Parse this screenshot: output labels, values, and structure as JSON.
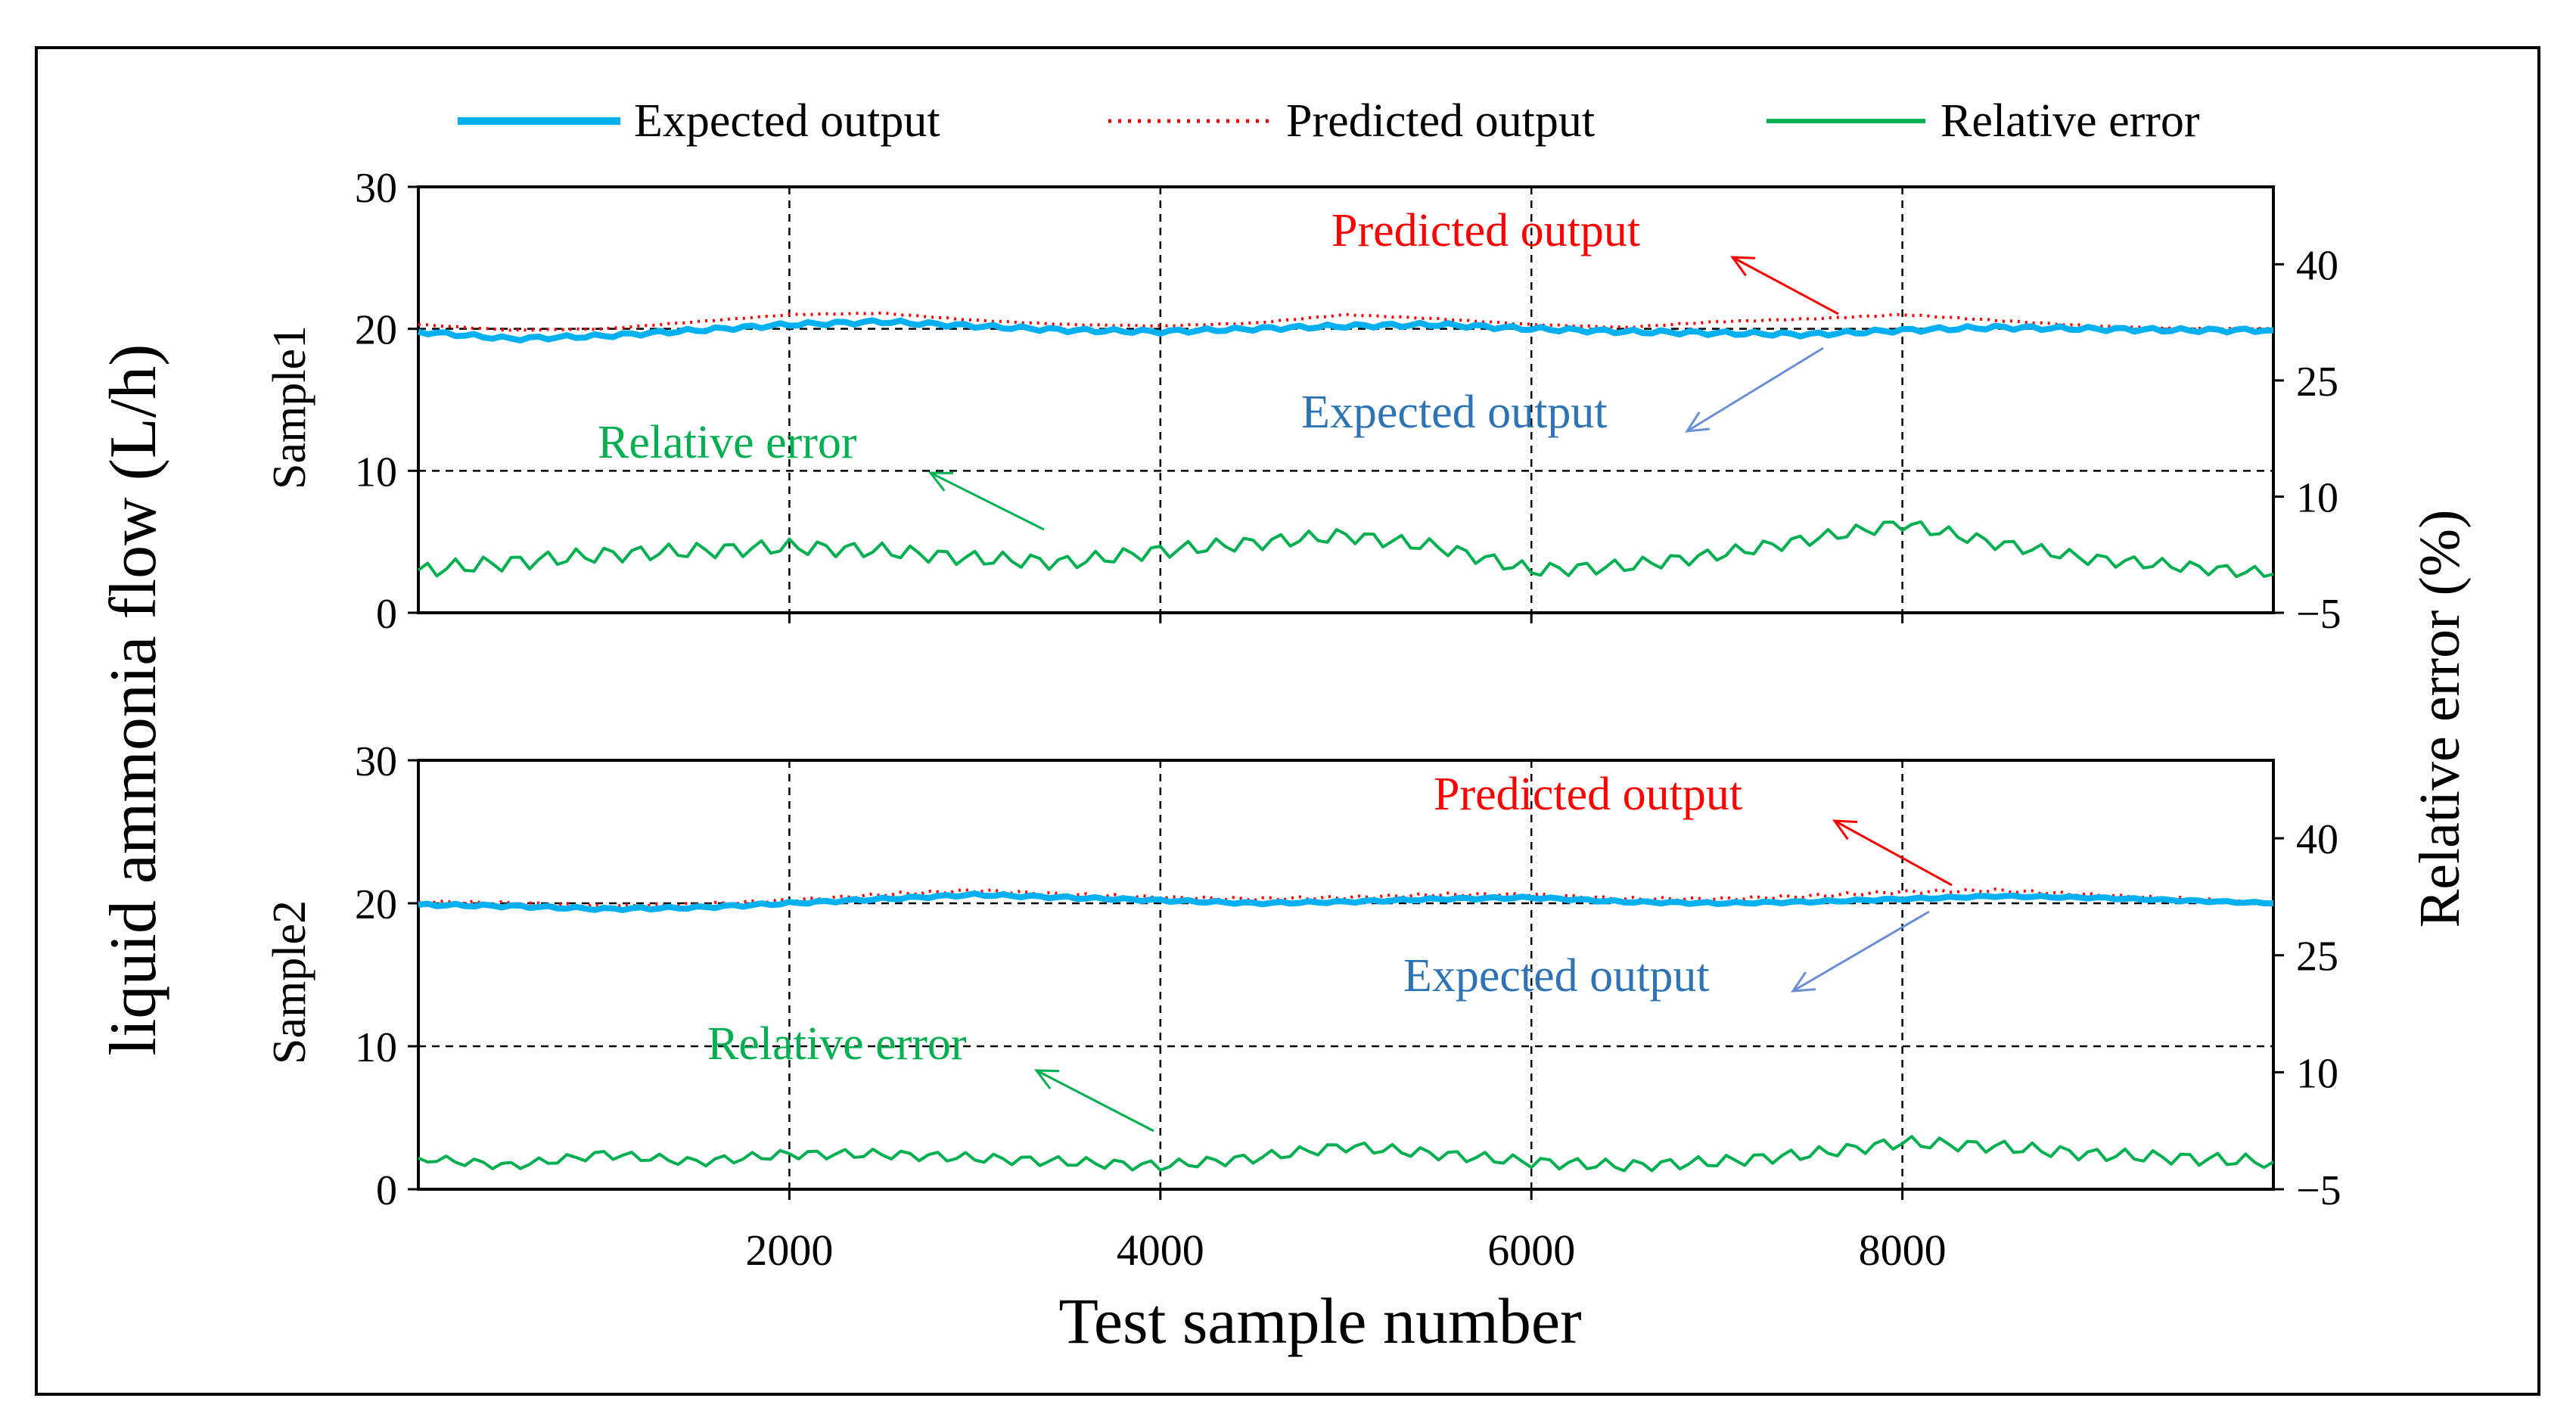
{
  "legend": {
    "items": [
      {
        "label": "Expected output",
        "color": "#00b0f0",
        "style": "solid"
      },
      {
        "label": "Predicted output",
        "color": "#ff0000",
        "style": "dotted"
      },
      {
        "label": "Relative error",
        "color": "#00b050",
        "style": "solid"
      }
    ]
  },
  "axes": {
    "ylabel_left": "liquid ammonia flow (L/h)",
    "ylabel_right": "Relative error (%)",
    "xlabel": "Test sample number",
    "xlim": [
      0,
      10000
    ],
    "xticks": [
      2000,
      4000,
      6000,
      8000
    ],
    "xtick_labels": [
      "2000",
      "4000",
      "6000",
      "8000"
    ],
    "ylim_left": [
      0,
      30
    ],
    "yticks_left": [
      0,
      10,
      20,
      30
    ],
    "yticks_left_labels": [
      "0",
      "10",
      "20",
      "30"
    ],
    "ylim_right": [
      -5,
      50
    ],
    "yticks_right": [
      -5,
      10,
      25,
      40
    ],
    "yticks_right_labels": [
      "−5",
      "10",
      "25",
      "40"
    ]
  },
  "colors": {
    "expected": "#00b0f0",
    "predicted": "#ff0000",
    "error": "#00b050",
    "ann_expected": "#2e74b5",
    "ann_predicted": "#ff0000",
    "ann_error": "#00b050"
  },
  "panels": [
    {
      "name": "Sample1",
      "annotations": {
        "predicted": "Predicted output",
        "expected": "Expected output",
        "error": "Relative error"
      }
    },
    {
      "name": "Sample2",
      "annotations": {
        "predicted": "Predicted output",
        "expected": "Expected output",
        "error": "Relative error"
      }
    }
  ],
  "chart_data": [
    {
      "type": "line",
      "title": "Sample1",
      "xlabel": "Test sample number",
      "ylabel": "liquid ammonia flow (L/h)",
      "y2label": "Relative error (%)",
      "xlim": [
        0,
        10000
      ],
      "ylim": [
        0,
        30
      ],
      "y2lim": [
        -5,
        50
      ],
      "x": [
        0,
        500,
        1000,
        1500,
        2000,
        2500,
        3000,
        3500,
        4000,
        4500,
        5000,
        5500,
        6000,
        6500,
        7000,
        7500,
        8000,
        8500,
        9000,
        9500,
        10000
      ],
      "series": [
        {
          "name": "Expected output",
          "axis": "left",
          "values": [
            19.8,
            19.3,
            19.5,
            19.9,
            20.3,
            20.5,
            20.2,
            19.9,
            19.8,
            20.0,
            20.2,
            20.3,
            20.0,
            19.8,
            19.7,
            19.6,
            19.9,
            20.1,
            20.0,
            19.9,
            19.9
          ]
        },
        {
          "name": "Predicted output",
          "axis": "left",
          "values": [
            20.3,
            19.9,
            20.0,
            20.5,
            21.0,
            21.1,
            20.6,
            20.3,
            20.2,
            20.4,
            21.0,
            20.7,
            20.3,
            20.1,
            20.5,
            20.7,
            21.0,
            20.6,
            20.2,
            20.0,
            20.0
          ]
        },
        {
          "name": "Relative error",
          "axis": "right",
          "values": [
            0.5,
            1.5,
            2.5,
            3.0,
            3.5,
            3.0,
            2.0,
            1.5,
            3.0,
            4.0,
            5.0,
            3.5,
            0.5,
            1.0,
            2.5,
            4.5,
            6.5,
            4.0,
            2.0,
            1.0,
            0.0
          ]
        }
      ]
    },
    {
      "type": "line",
      "title": "Sample2",
      "xlabel": "Test sample number",
      "ylabel": "liquid ammonia flow (L/h)",
      "y2label": "Relative error (%)",
      "xlim": [
        0,
        10000
      ],
      "ylim": [
        0,
        30
      ],
      "y2lim": [
        -5,
        50
      ],
      "x": [
        0,
        500,
        1000,
        1500,
        2000,
        2500,
        3000,
        3500,
        4000,
        4500,
        5000,
        5500,
        6000,
        6500,
        7000,
        7500,
        8000,
        8500,
        9000,
        9500,
        10000
      ],
      "series": [
        {
          "name": "Expected output",
          "axis": "left",
          "values": [
            19.9,
            19.8,
            19.6,
            19.7,
            20.0,
            20.3,
            20.6,
            20.4,
            20.2,
            20.0,
            20.1,
            20.3,
            20.4,
            20.1,
            20.0,
            20.1,
            20.3,
            20.5,
            20.4,
            20.2,
            20.0
          ]
        },
        {
          "name": "Predicted output",
          "axis": "left",
          "values": [
            20.1,
            20.0,
            19.8,
            19.9,
            20.2,
            20.6,
            20.9,
            20.6,
            20.4,
            20.3,
            20.4,
            20.6,
            20.6,
            20.3,
            20.3,
            20.5,
            20.8,
            20.9,
            20.6,
            20.3,
            20.0
          ]
        },
        {
          "name": "Relative error",
          "axis": "right",
          "values": [
            -1.0,
            -2.0,
            -0.5,
            -1.5,
            -0.5,
            -0.5,
            -1.0,
            -1.5,
            -2.0,
            -1.0,
            0.5,
            -0.5,
            -1.5,
            -2.0,
            -1.5,
            -0.5,
            1.0,
            0.5,
            -0.5,
            -1.0,
            -1.5
          ]
        }
      ]
    }
  ]
}
